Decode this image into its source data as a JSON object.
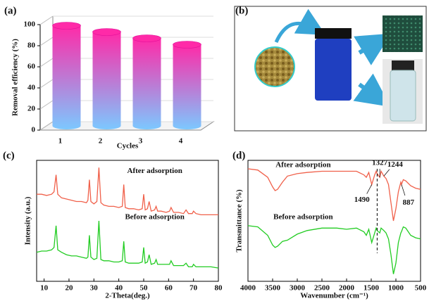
{
  "chart_data": [
    {
      "type": "bar",
      "label": "(a)",
      "xlabel": "Cycles",
      "ylabel": "Removal efficiency (%)",
      "categories": [
        "1",
        "2",
        "3",
        "4"
      ],
      "values": [
        95,
        89,
        83,
        77
      ],
      "ylim": [
        0,
        100
      ],
      "yticks": [
        0,
        20,
        40,
        60,
        80,
        100
      ],
      "colors": [
        "#ff2aa8",
        "#7cc8ff"
      ]
    },
    {
      "type": "image",
      "label": "(b)"
    },
    {
      "type": "line",
      "label": "(c)",
      "xlabel": "2-Theta(deg.)",
      "ylabel": "Intensity (a.u.)",
      "xlim": [
        7,
        80
      ],
      "xticks": [
        10,
        20,
        30,
        40,
        50,
        60,
        70,
        80
      ],
      "ylim": [
        0,
        100
      ],
      "x": [
        7,
        9,
        11,
        13,
        14,
        14.8,
        15.5,
        17,
        19,
        21,
        23,
        25,
        27,
        27.6,
        28.2,
        28.8,
        30,
        31.2,
        32,
        32.8,
        34,
        36,
        38,
        40,
        41.4,
        42,
        42.6,
        44,
        46,
        48,
        49.4,
        50,
        50.6,
        51.5,
        52.2,
        53,
        54.4,
        55,
        55.6,
        57,
        59,
        60.4,
        61,
        62,
        64,
        66,
        67,
        68,
        69.5,
        70,
        71,
        73,
        75,
        77,
        80
      ],
      "series": [
        {
          "name": "After adsorption",
          "color": "#f0604a",
          "values": [
            72,
            72,
            71,
            72,
            74,
            88,
            72,
            69,
            68,
            67,
            66,
            66,
            65,
            67,
            84,
            66,
            64,
            66,
            94,
            65,
            63,
            62,
            62,
            61,
            62,
            80,
            61,
            60,
            60,
            59,
            60,
            72,
            59,
            60,
            66,
            58,
            59,
            62,
            58,
            58,
            57,
            58,
            61,
            57,
            57,
            56,
            59,
            56,
            56,
            58,
            56,
            55,
            55,
            55,
            55
          ]
        },
        {
          "name": "Before adsorption",
          "color": "#22cc22",
          "values": [
            24,
            25,
            25,
            26,
            28,
            46,
            26,
            24,
            22,
            21,
            21,
            20,
            19,
            20,
            38,
            20,
            18,
            19,
            50,
            18,
            17,
            17,
            16,
            16,
            17,
            33,
            16,
            15,
            15,
            15,
            16,
            28,
            15,
            16,
            22,
            14,
            15,
            18,
            14,
            14,
            14,
            14,
            17,
            13,
            13,
            13,
            15,
            12,
            12,
            14,
            12,
            12,
            12,
            12,
            11
          ]
        }
      ]
    },
    {
      "type": "line",
      "label": "(d)",
      "xlabel": "Wavenumber (cm⁻¹)",
      "ylabel": "Transmittance (%)",
      "xlim": [
        4000,
        500
      ],
      "xticks": [
        4000,
        3500,
        3000,
        2500,
        2000,
        1500,
        1000,
        500
      ],
      "ylim": [
        0,
        100
      ],
      "x": [
        4000,
        3800,
        3600,
        3500,
        3450,
        3400,
        3300,
        3200,
        3000,
        2800,
        2500,
        2200,
        2000,
        1800,
        1650,
        1600,
        1550,
        1490,
        1430,
        1400,
        1380,
        1327,
        1300,
        1244,
        1200,
        1150,
        1100,
        1050,
        1000,
        950,
        900,
        887,
        850,
        800,
        700,
        600,
        500
      ],
      "series": [
        {
          "name": "After adsorption",
          "color": "#f0604a",
          "values": [
            93,
            92,
            86,
            78,
            75,
            76,
            82,
            87,
            89,
            90,
            91,
            91,
            91,
            91,
            88,
            86,
            90,
            80,
            88,
            91,
            89,
            86,
            91,
            87,
            85,
            80,
            65,
            50,
            60,
            74,
            82,
            80,
            84,
            83,
            79,
            77,
            76
          ]
        },
        {
          "name": "Before adsorption",
          "color": "#22cc22",
          "values": [
            46,
            45,
            38,
            30,
            28,
            29,
            33,
            34,
            39,
            42,
            44,
            44,
            43,
            44,
            41,
            38,
            43,
            32,
            40,
            44,
            42,
            40,
            44,
            42,
            40,
            35,
            22,
            6,
            15,
            32,
            40,
            41,
            45,
            44,
            38,
            36,
            35
          ]
        }
      ],
      "annotations": [
        {
          "text": "1490",
          "x": 1490
        },
        {
          "text": "1327",
          "x": 1327
        },
        {
          "text": "1244",
          "x": 1244
        },
        {
          "text": "887",
          "x": 887
        }
      ],
      "marker_line": 1380
    }
  ]
}
